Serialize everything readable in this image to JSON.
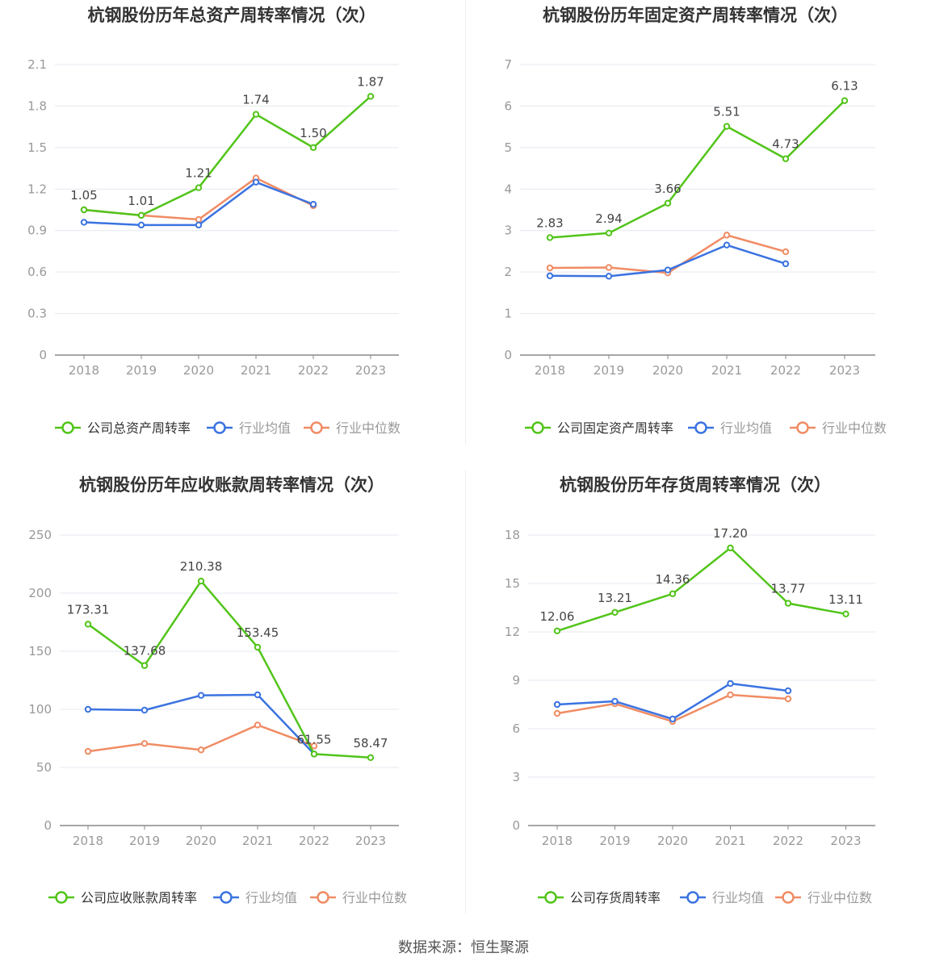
{
  "source_text": "数据来源：恒生聚源",
  "colors": {
    "company": "#52c41a",
    "avg": "#3b73e0",
    "median": "#f08c64",
    "grid": "#e6e8f0",
    "axis": "#888888",
    "tick": "#999999",
    "title": "#333333",
    "label": "#444444"
  },
  "chart_data": [
    {
      "type": "line",
      "title": "杭钢股份历年总资产周转率情况（次）",
      "categories": [
        "2018",
        "2019",
        "2020",
        "2021",
        "2022",
        "2023"
      ],
      "ylim": [
        0,
        2.1
      ],
      "yticks": [
        "0",
        "0.3",
        "0.6",
        "0.9",
        "1.2",
        "1.5",
        "1.8",
        "2.1"
      ],
      "series": [
        {
          "name": "公司总资产周转率",
          "key": "company",
          "values": [
            1.05,
            1.01,
            1.21,
            1.74,
            1.5,
            1.87
          ],
          "labels": [
            "1.05",
            "1.01",
            "1.21",
            "1.74",
            "1.50",
            "1.87"
          ]
        },
        {
          "name": "行业均值",
          "key": "avg",
          "values": [
            0.96,
            0.94,
            0.94,
            1.25,
            1.09,
            null
          ]
        },
        {
          "name": "行业中位数",
          "key": "median",
          "values": [
            1.05,
            1.01,
            0.98,
            1.28,
            1.08,
            null
          ]
        }
      ]
    },
    {
      "type": "line",
      "title": "杭钢股份历年固定资产周转率情况（次）",
      "categories": [
        "2018",
        "2019",
        "2020",
        "2021",
        "2022",
        "2023"
      ],
      "ylim": [
        0,
        7
      ],
      "yticks": [
        "0",
        "1",
        "2",
        "3",
        "4",
        "5",
        "6",
        "7"
      ],
      "series": [
        {
          "name": "公司固定资产周转率",
          "key": "company",
          "values": [
            2.83,
            2.94,
            3.66,
            5.51,
            4.73,
            6.13
          ],
          "labels": [
            "2.83",
            "2.94",
            "3.66",
            "5.51",
            "4.73",
            "6.13"
          ]
        },
        {
          "name": "行业均值",
          "key": "avg",
          "values": [
            1.91,
            1.9,
            2.05,
            2.65,
            2.2,
            null
          ]
        },
        {
          "name": "行业中位数",
          "key": "median",
          "values": [
            2.1,
            2.11,
            1.98,
            2.89,
            2.49,
            null
          ]
        }
      ]
    },
    {
      "type": "line",
      "title": "杭钢股份历年应收账款周转率情况（次）",
      "categories": [
        "2018",
        "2019",
        "2020",
        "2021",
        "2022",
        "2023"
      ],
      "ylim": [
        0,
        250
      ],
      "yticks": [
        "0",
        "50",
        "100",
        "150",
        "200",
        "250"
      ],
      "series": [
        {
          "name": "公司应收账款周转率",
          "key": "company",
          "values": [
            173.31,
            137.68,
            210.38,
            153.45,
            61.55,
            58.47
          ],
          "labels": [
            "173.31",
            "137.68",
            "210.38",
            "153.45",
            "61.55",
            "58.47"
          ]
        },
        {
          "name": "行业均值",
          "key": "avg",
          "values": [
            100,
            99.3,
            112,
            112.5,
            61.5,
            null
          ]
        },
        {
          "name": "行业中位数",
          "key": "median",
          "values": [
            63.8,
            70.6,
            65.1,
            86.5,
            68.5,
            null
          ]
        }
      ]
    },
    {
      "type": "line",
      "title": "杭钢股份历年存货周转率情况（次）",
      "categories": [
        "2018",
        "2019",
        "2020",
        "2021",
        "2022",
        "2023"
      ],
      "ylim": [
        0,
        18
      ],
      "yticks": [
        "0",
        "3",
        "6",
        "9",
        "12",
        "15",
        "18"
      ],
      "series": [
        {
          "name": "公司存货周转率",
          "key": "company",
          "values": [
            12.06,
            13.21,
            14.36,
            17.2,
            13.77,
            13.11
          ],
          "labels": [
            "12.06",
            "13.21",
            "14.36",
            "17.20",
            "13.77",
            "13.11"
          ]
        },
        {
          "name": "行业均值",
          "key": "avg",
          "values": [
            7.5,
            7.7,
            6.6,
            8.8,
            8.35,
            null
          ]
        },
        {
          "name": "行业中位数",
          "key": "median",
          "values": [
            6.95,
            7.55,
            6.45,
            8.1,
            7.85,
            null
          ]
        }
      ]
    }
  ]
}
